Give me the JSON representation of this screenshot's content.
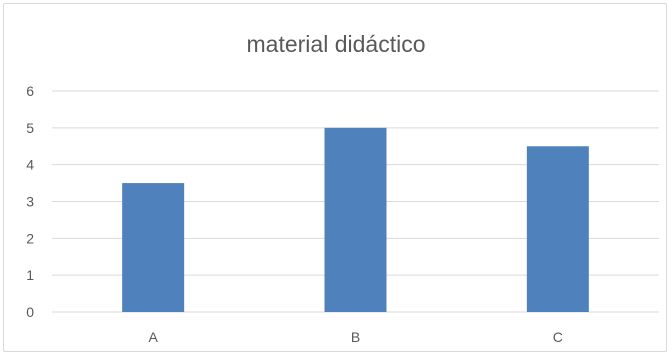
{
  "chart_data": {
    "type": "bar",
    "title": "material didáctico",
    "categories": [
      "A",
      "B",
      "C"
    ],
    "values": [
      3.5,
      5,
      4.5
    ],
    "xlabel": "",
    "ylabel": "",
    "ylim": [
      0,
      6
    ],
    "yticks": [
      "0",
      "1",
      "2",
      "3",
      "4",
      "5",
      "6"
    ],
    "grid": true,
    "legend": "none",
    "bar_color": "#4f81bd",
    "grid_color": "#d9d9d9"
  }
}
